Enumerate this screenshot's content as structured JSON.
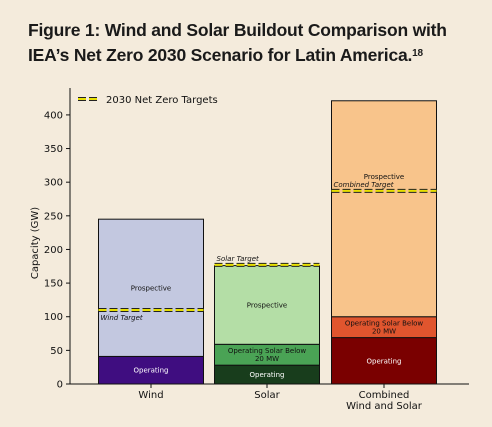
{
  "figure": {
    "title": "Figure 1: Wind and Solar Buildout Comparison with IEA’s Net Zero 2030 Scenario for Latin America.",
    "title_ref": "18"
  },
  "chart_data": {
    "type": "bar",
    "stacked": true,
    "ylabel": "Capacity (GW)",
    "ylim": [
      0,
      440
    ],
    "yticks": [
      0,
      50,
      100,
      150,
      200,
      250,
      300,
      350,
      400
    ],
    "legend": {
      "placement": "top-left",
      "entries": [
        {
          "label": "2030 Net Zero Targets",
          "color": "#e8e000",
          "style": "dashed"
        }
      ]
    },
    "categories": [
      {
        "name": "Wind",
        "segments": [
          {
            "label": "Operating",
            "value": 41,
            "color": "#3f0d80",
            "text_color": "#ffffff"
          },
          {
            "label": "Prospective",
            "value": 204,
            "color": "#c3c8e0",
            "text_color": "#111111"
          }
        ],
        "target": {
          "label": "Wind Target",
          "value": 110
        }
      },
      {
        "name": "Solar",
        "segments": [
          {
            "label": "Operating",
            "value": 28,
            "color": "#183d1c",
            "text_color": "#ffffff"
          },
          {
            "label": "Operating Solar Below 20 MW",
            "value": 31,
            "color": "#4aa355",
            "text_color": "#111111"
          },
          {
            "label": "Prospective",
            "value": 117,
            "color": "#b4dea6",
            "text_color": "#111111"
          }
        ],
        "target": {
          "label": "Solar Target",
          "value": 177
        }
      },
      {
        "name": "Combined Wind and Solar",
        "segments": [
          {
            "label": "Operating",
            "value": 69,
            "color": "#7a0000",
            "text_color": "#ffffff"
          },
          {
            "label": "Operating Solar Below 20 MW",
            "value": 31,
            "color": "#e0552e",
            "text_color": "#111111"
          },
          {
            "label": "Prospective",
            "value": 321,
            "color": "#f8c48b",
            "text_color": "#111111"
          }
        ],
        "target": {
          "label": "Combined Target",
          "value": 287
        }
      }
    ]
  }
}
